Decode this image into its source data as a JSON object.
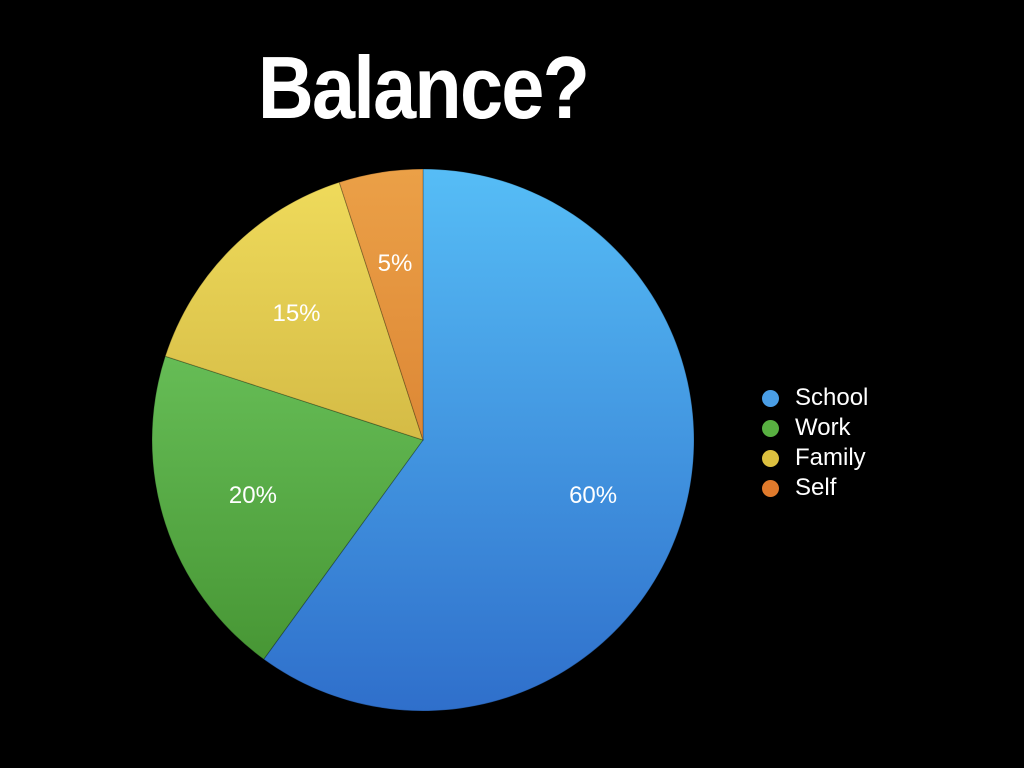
{
  "slide": {
    "title": "Balance?"
  },
  "chart_data": {
    "type": "pie",
    "title": "Balance?",
    "categories": [
      "School",
      "Work",
      "Family",
      "Self"
    ],
    "values": [
      60,
      20,
      15,
      5
    ],
    "value_labels": [
      "60%",
      "20%",
      "15%",
      "5%"
    ],
    "unit": "%",
    "colors": {
      "School": [
        "#56bdf6",
        "#2f6fcb"
      ],
      "Work": [
        "#79d46a",
        "#42902f"
      ],
      "Family": [
        "#f0dc5c",
        "#b99a2f"
      ],
      "Self": [
        "#eba047",
        "#cf6f24"
      ]
    },
    "legend": {
      "position": "right",
      "items": [
        {
          "label": "School",
          "color": "#4a9ee6"
        },
        {
          "label": "Work",
          "color": "#58b041"
        },
        {
          "label": "Family",
          "color": "#dcc03f"
        },
        {
          "label": "Self",
          "color": "#e07a2c"
        }
      ]
    },
    "start": "top",
    "direction": "clockwise"
  }
}
